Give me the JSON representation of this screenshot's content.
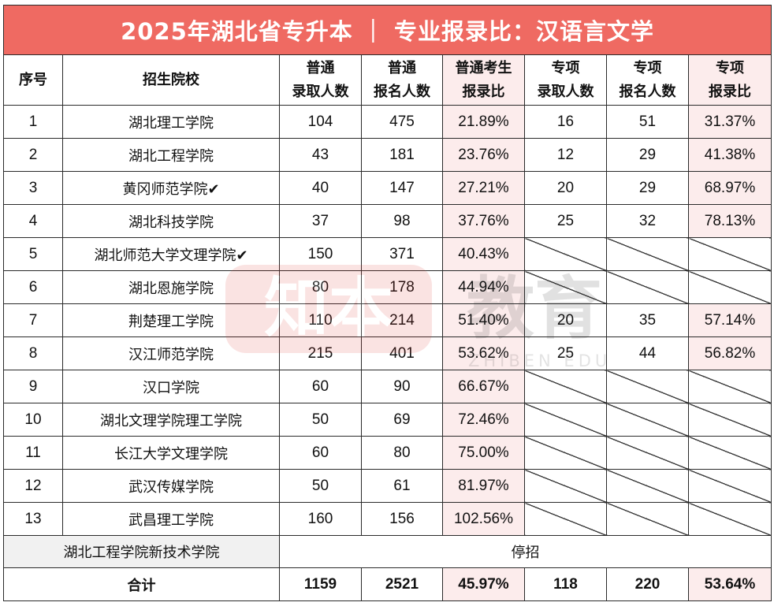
{
  "title": "2025年湖北省专升本 ｜ 专业报录比：汉语言文学",
  "watermark": {
    "badge_text": "知本",
    "brand_text": "教育",
    "sub_text": "ZHIBEN EDU"
  },
  "headers": {
    "seq": "序号",
    "school": "招生院校",
    "reg_admit": [
      "普通",
      "录取人数"
    ],
    "reg_apply": [
      "普通",
      "报名人数"
    ],
    "reg_ratio": [
      "普通考生",
      "报录比"
    ],
    "spec_admit": [
      "专项",
      "录取人数"
    ],
    "spec_apply": [
      "专项",
      "报名人数"
    ],
    "spec_ratio": [
      "专项",
      "报录比"
    ]
  },
  "rows": [
    {
      "seq": "1",
      "school": "湖北理工学院",
      "check": "",
      "reg_admit": "104",
      "reg_apply": "475",
      "reg_ratio": "21.89%",
      "spec_admit": "16",
      "spec_apply": "51",
      "spec_ratio": "31.37%"
    },
    {
      "seq": "2",
      "school": "湖北工程学院",
      "check": "",
      "reg_admit": "43",
      "reg_apply": "181",
      "reg_ratio": "23.76%",
      "spec_admit": "12",
      "spec_apply": "29",
      "spec_ratio": "41.38%"
    },
    {
      "seq": "3",
      "school": "黄冈师范学院",
      "check": "✔",
      "reg_admit": "40",
      "reg_apply": "147",
      "reg_ratio": "27.21%",
      "spec_admit": "20",
      "spec_apply": "29",
      "spec_ratio": "68.97%"
    },
    {
      "seq": "4",
      "school": "湖北科技学院",
      "check": "",
      "reg_admit": "37",
      "reg_apply": "98",
      "reg_ratio": "37.76%",
      "spec_admit": "25",
      "spec_apply": "32",
      "spec_ratio": "78.13%"
    },
    {
      "seq": "5",
      "school": "湖北师范大学文理学院",
      "check": "✔",
      "reg_admit": "150",
      "reg_apply": "371",
      "reg_ratio": "40.43%",
      "spec_admit": null,
      "spec_apply": null,
      "spec_ratio": null
    },
    {
      "seq": "6",
      "school": "湖北恩施学院",
      "check": "",
      "reg_admit": "80",
      "reg_apply": "178",
      "reg_ratio": "44.94%",
      "spec_admit": null,
      "spec_apply": null,
      "spec_ratio": null
    },
    {
      "seq": "7",
      "school": "荆楚理工学院",
      "check": "",
      "reg_admit": "110",
      "reg_apply": "214",
      "reg_ratio": "51.40%",
      "spec_admit": "20",
      "spec_apply": "35",
      "spec_ratio": "57.14%"
    },
    {
      "seq": "8",
      "school": "汉江师范学院",
      "check": "",
      "reg_admit": "215",
      "reg_apply": "401",
      "reg_ratio": "53.62%",
      "spec_admit": "25",
      "spec_apply": "44",
      "spec_ratio": "56.82%"
    },
    {
      "seq": "9",
      "school": "汉口学院",
      "check": "",
      "reg_admit": "60",
      "reg_apply": "90",
      "reg_ratio": "66.67%",
      "spec_admit": null,
      "spec_apply": null,
      "spec_ratio": null
    },
    {
      "seq": "10",
      "school": "湖北文理学院理工学院",
      "check": "",
      "reg_admit": "50",
      "reg_apply": "69",
      "reg_ratio": "72.46%",
      "spec_admit": null,
      "spec_apply": null,
      "spec_ratio": null
    },
    {
      "seq": "11",
      "school": "长江大学文理学院",
      "check": "",
      "reg_admit": "60",
      "reg_apply": "80",
      "reg_ratio": "75.00%",
      "spec_admit": null,
      "spec_apply": null,
      "spec_ratio": null
    },
    {
      "seq": "12",
      "school": "武汉传媒学院",
      "check": "",
      "reg_admit": "50",
      "reg_apply": "61",
      "reg_ratio": "81.97%",
      "spec_admit": null,
      "spec_apply": null,
      "spec_ratio": null
    },
    {
      "seq": "13",
      "school": "武昌理工学院",
      "check": "",
      "reg_admit": "160",
      "reg_apply": "156",
      "reg_ratio": "102.56%",
      "spec_admit": null,
      "spec_apply": null,
      "spec_ratio": null
    }
  ],
  "stopped": {
    "school": "湖北工程学院新技术学院",
    "note": "停招"
  },
  "total": {
    "label": "合计",
    "reg_admit": "1159",
    "reg_apply": "2521",
    "reg_ratio": "45.97%",
    "spec_admit": "118",
    "spec_apply": "220",
    "spec_ratio": "53.64%"
  },
  "colors": {
    "title_bg": "#ef6a62",
    "ratio_bg": "#fcecec",
    "stopped_bg": "#f1f1f1"
  }
}
